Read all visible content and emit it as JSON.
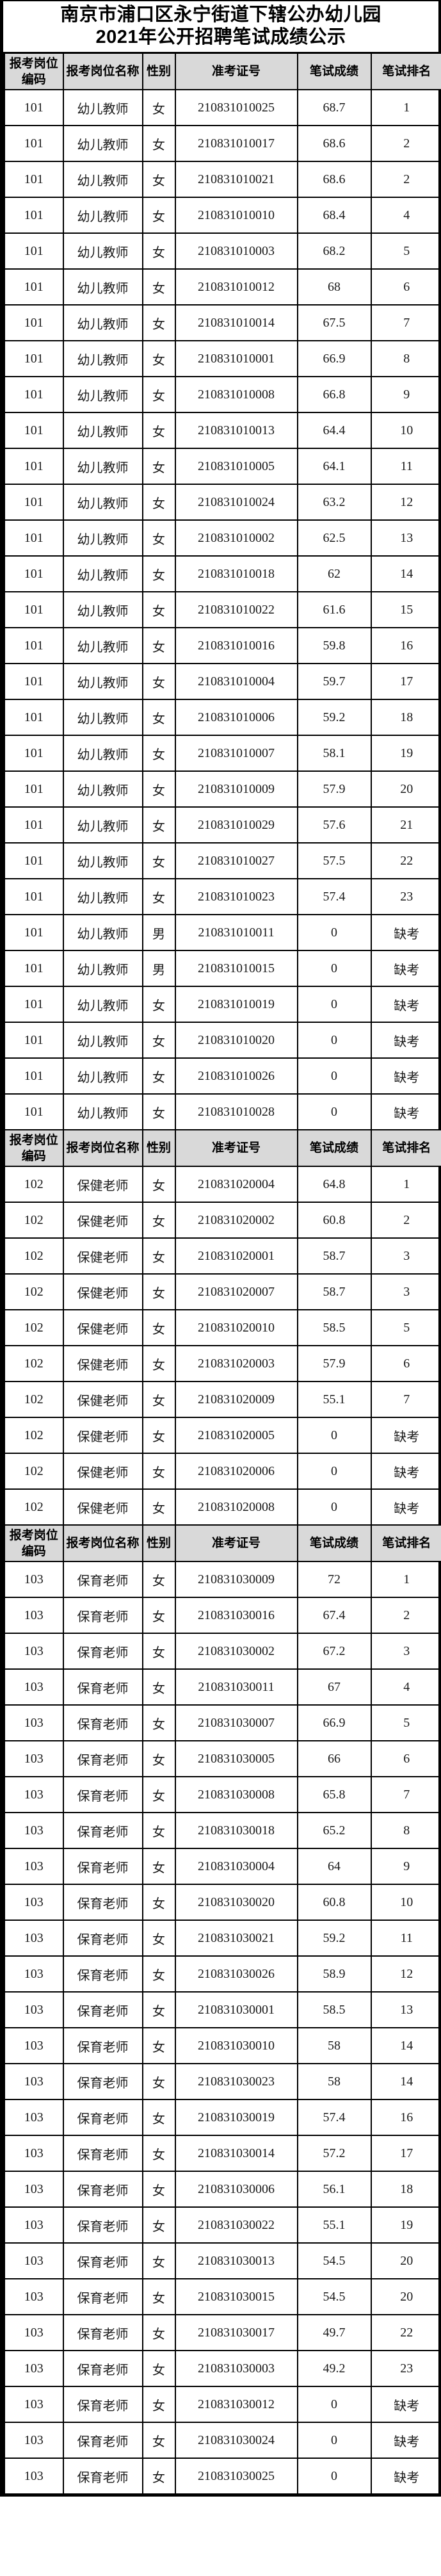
{
  "page": {
    "background": "#ffffff",
    "border_color": "#000000",
    "header_bg": "#d9d9d9",
    "text_color": "#000000"
  },
  "title": {
    "line1": "南京市浦口区永宁街道下辖公办幼儿园",
    "line2": "2021年公开招聘笔试成绩公示"
  },
  "table": {
    "columns": [
      {
        "key": "code",
        "label": "报考岗位编码"
      },
      {
        "key": "name",
        "label": "报考岗位名称"
      },
      {
        "key": "gender",
        "label": "性别"
      },
      {
        "key": "ticket",
        "label": "准考证号"
      },
      {
        "key": "score",
        "label": "笔试成绩"
      },
      {
        "key": "rank",
        "label": "笔试排名"
      }
    ],
    "absent_label": "缺考",
    "sections": [
      {
        "position_code": "101",
        "position_name": "幼儿教师",
        "rows": [
          [
            "101",
            "幼儿教师",
            "女",
            "210831010025",
            "68.7",
            "1"
          ],
          [
            "101",
            "幼儿教师",
            "女",
            "210831010017",
            "68.6",
            "2"
          ],
          [
            "101",
            "幼儿教师",
            "女",
            "210831010021",
            "68.6",
            "2"
          ],
          [
            "101",
            "幼儿教师",
            "女",
            "210831010010",
            "68.4",
            "4"
          ],
          [
            "101",
            "幼儿教师",
            "女",
            "210831010003",
            "68.2",
            "5"
          ],
          [
            "101",
            "幼儿教师",
            "女",
            "210831010012",
            "68",
            "6"
          ],
          [
            "101",
            "幼儿教师",
            "女",
            "210831010014",
            "67.5",
            "7"
          ],
          [
            "101",
            "幼儿教师",
            "女",
            "210831010001",
            "66.9",
            "8"
          ],
          [
            "101",
            "幼儿教师",
            "女",
            "210831010008",
            "66.8",
            "9"
          ],
          [
            "101",
            "幼儿教师",
            "女",
            "210831010013",
            "64.4",
            "10"
          ],
          [
            "101",
            "幼儿教师",
            "女",
            "210831010005",
            "64.1",
            "11"
          ],
          [
            "101",
            "幼儿教师",
            "女",
            "210831010024",
            "63.2",
            "12"
          ],
          [
            "101",
            "幼儿教师",
            "女",
            "210831010002",
            "62.5",
            "13"
          ],
          [
            "101",
            "幼儿教师",
            "女",
            "210831010018",
            "62",
            "14"
          ],
          [
            "101",
            "幼儿教师",
            "女",
            "210831010022",
            "61.6",
            "15"
          ],
          [
            "101",
            "幼儿教师",
            "女",
            "210831010016",
            "59.8",
            "16"
          ],
          [
            "101",
            "幼儿教师",
            "女",
            "210831010004",
            "59.7",
            "17"
          ],
          [
            "101",
            "幼儿教师",
            "女",
            "210831010006",
            "59.2",
            "18"
          ],
          [
            "101",
            "幼儿教师",
            "女",
            "210831010007",
            "58.1",
            "19"
          ],
          [
            "101",
            "幼儿教师",
            "女",
            "210831010009",
            "57.9",
            "20"
          ],
          [
            "101",
            "幼儿教师",
            "女",
            "210831010029",
            "57.6",
            "21"
          ],
          [
            "101",
            "幼儿教师",
            "女",
            "210831010027",
            "57.5",
            "22"
          ],
          [
            "101",
            "幼儿教师",
            "女",
            "210831010023",
            "57.4",
            "23"
          ],
          [
            "101",
            "幼儿教师",
            "男",
            "210831010011",
            "0",
            "缺考"
          ],
          [
            "101",
            "幼儿教师",
            "男",
            "210831010015",
            "0",
            "缺考"
          ],
          [
            "101",
            "幼儿教师",
            "女",
            "210831010019",
            "0",
            "缺考"
          ],
          [
            "101",
            "幼儿教师",
            "女",
            "210831010020",
            "0",
            "缺考"
          ],
          [
            "101",
            "幼儿教师",
            "女",
            "210831010026",
            "0",
            "缺考"
          ],
          [
            "101",
            "幼儿教师",
            "女",
            "210831010028",
            "0",
            "缺考"
          ]
        ]
      },
      {
        "position_code": "102",
        "position_name": "保健老师",
        "rows": [
          [
            "102",
            "保健老师",
            "女",
            "210831020004",
            "64.8",
            "1"
          ],
          [
            "102",
            "保健老师",
            "女",
            "210831020002",
            "60.8",
            "2"
          ],
          [
            "102",
            "保健老师",
            "女",
            "210831020001",
            "58.7",
            "3"
          ],
          [
            "102",
            "保健老师",
            "女",
            "210831020007",
            "58.7",
            "3"
          ],
          [
            "102",
            "保健老师",
            "女",
            "210831020010",
            "58.5",
            "5"
          ],
          [
            "102",
            "保健老师",
            "女",
            "210831020003",
            "57.9",
            "6"
          ],
          [
            "102",
            "保健老师",
            "女",
            "210831020009",
            "55.1",
            "7"
          ],
          [
            "102",
            "保健老师",
            "女",
            "210831020005",
            "0",
            "缺考"
          ],
          [
            "102",
            "保健老师",
            "女",
            "210831020006",
            "0",
            "缺考"
          ],
          [
            "102",
            "保健老师",
            "女",
            "210831020008",
            "0",
            "缺考"
          ]
        ]
      },
      {
        "position_code": "103",
        "position_name": "保育老师",
        "rows": [
          [
            "103",
            "保育老师",
            "女",
            "210831030009",
            "72",
            "1"
          ],
          [
            "103",
            "保育老师",
            "女",
            "210831030016",
            "67.4",
            "2"
          ],
          [
            "103",
            "保育老师",
            "女",
            "210831030002",
            "67.2",
            "3"
          ],
          [
            "103",
            "保育老师",
            "女",
            "210831030011",
            "67",
            "4"
          ],
          [
            "103",
            "保育老师",
            "女",
            "210831030007",
            "66.9",
            "5"
          ],
          [
            "103",
            "保育老师",
            "女",
            "210831030005",
            "66",
            "6"
          ],
          [
            "103",
            "保育老师",
            "女",
            "210831030008",
            "65.8",
            "7"
          ],
          [
            "103",
            "保育老师",
            "女",
            "210831030018",
            "65.2",
            "8"
          ],
          [
            "103",
            "保育老师",
            "女",
            "210831030004",
            "64",
            "9"
          ],
          [
            "103",
            "保育老师",
            "女",
            "210831030020",
            "60.8",
            "10"
          ],
          [
            "103",
            "保育老师",
            "女",
            "210831030021",
            "59.2",
            "11"
          ],
          [
            "103",
            "保育老师",
            "女",
            "210831030026",
            "58.9",
            "12"
          ],
          [
            "103",
            "保育老师",
            "女",
            "210831030001",
            "58.5",
            "13"
          ],
          [
            "103",
            "保育老师",
            "女",
            "210831030010",
            "58",
            "14"
          ],
          [
            "103",
            "保育老师",
            "女",
            "210831030023",
            "58",
            "14"
          ],
          [
            "103",
            "保育老师",
            "女",
            "210831030019",
            "57.4",
            "16"
          ],
          [
            "103",
            "保育老师",
            "女",
            "210831030014",
            "57.2",
            "17"
          ],
          [
            "103",
            "保育老师",
            "女",
            "210831030006",
            "56.1",
            "18"
          ],
          [
            "103",
            "保育老师",
            "女",
            "210831030022",
            "55.1",
            "19"
          ],
          [
            "103",
            "保育老师",
            "女",
            "210831030013",
            "54.5",
            "20"
          ],
          [
            "103",
            "保育老师",
            "女",
            "210831030015",
            "54.5",
            "20"
          ],
          [
            "103",
            "保育老师",
            "女",
            "210831030017",
            "49.7",
            "22"
          ],
          [
            "103",
            "保育老师",
            "女",
            "210831030003",
            "49.2",
            "23"
          ],
          [
            "103",
            "保育老师",
            "女",
            "210831030012",
            "0",
            "缺考"
          ],
          [
            "103",
            "保育老师",
            "女",
            "210831030024",
            "0",
            "缺考"
          ],
          [
            "103",
            "保育老师",
            "女",
            "210831030025",
            "0",
            "缺考"
          ]
        ]
      }
    ]
  }
}
